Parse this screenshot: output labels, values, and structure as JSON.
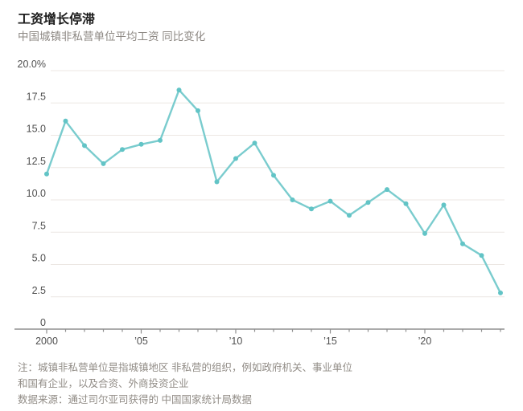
{
  "header": {
    "title": "工资增长停滞",
    "subtitle": "中国城镇非私营单位平均工资 同比变化"
  },
  "chart_data": {
    "type": "line",
    "title": "工资增长停滞",
    "subtitle": "中国城镇非私营单位平均工资 同比变化",
    "x": [
      2000,
      2001,
      2002,
      2003,
      2004,
      2005,
      2006,
      2007,
      2008,
      2009,
      2010,
      2011,
      2012,
      2013,
      2014,
      2015,
      2016,
      2017,
      2018,
      2019,
      2020,
      2021,
      2022,
      2023,
      2024
    ],
    "values": [
      12.0,
      16.1,
      14.2,
      12.8,
      13.9,
      14.3,
      14.6,
      18.5,
      16.9,
      11.4,
      13.2,
      14.4,
      11.9,
      10.0,
      9.3,
      9.9,
      8.8,
      9.8,
      10.8,
      9.7,
      7.4,
      9.6,
      6.6,
      5.7,
      2.8
    ],
    "ylim": [
      0,
      20
    ],
    "xlabel": "",
    "ylabel": "",
    "unit": "%",
    "grid": true,
    "legend": "none",
    "y_ticks": [
      {
        "value": 20,
        "label": "20.0%"
      },
      {
        "value": 17.5,
        "label": "17.5"
      },
      {
        "value": 15,
        "label": "15.0"
      },
      {
        "value": 12.5,
        "label": "12.5"
      },
      {
        "value": 10,
        "label": "10.0"
      },
      {
        "value": 7.5,
        "label": "7.5"
      },
      {
        "value": 5,
        "label": "5.0"
      },
      {
        "value": 2.5,
        "label": "2.5"
      },
      {
        "value": 0,
        "label": "0"
      }
    ],
    "x_ticks_labeled": [
      {
        "year": 2000,
        "label": "2000"
      },
      {
        "year": 2005,
        "label": "’05"
      },
      {
        "year": 2010,
        "label": "’10"
      },
      {
        "year": 2015,
        "label": "’15"
      },
      {
        "year": 2020,
        "label": "’20"
      }
    ],
    "colors": {
      "line": "#7accce",
      "marker": "#62c4c6",
      "grid": "#ece7e3",
      "axis": "#8f8f8f",
      "tick_label": "#4f4f4f"
    }
  },
  "footer": {
    "note_line1": "注：城镇非私营单位是指城镇地区 非私营的组织，例如政府机关、事业单位",
    "note_line2": "和国有企业，以及合资、外商投资企业",
    "source": "数据来源：通过司尔亚司获得的 中国国家统计局数据"
  }
}
